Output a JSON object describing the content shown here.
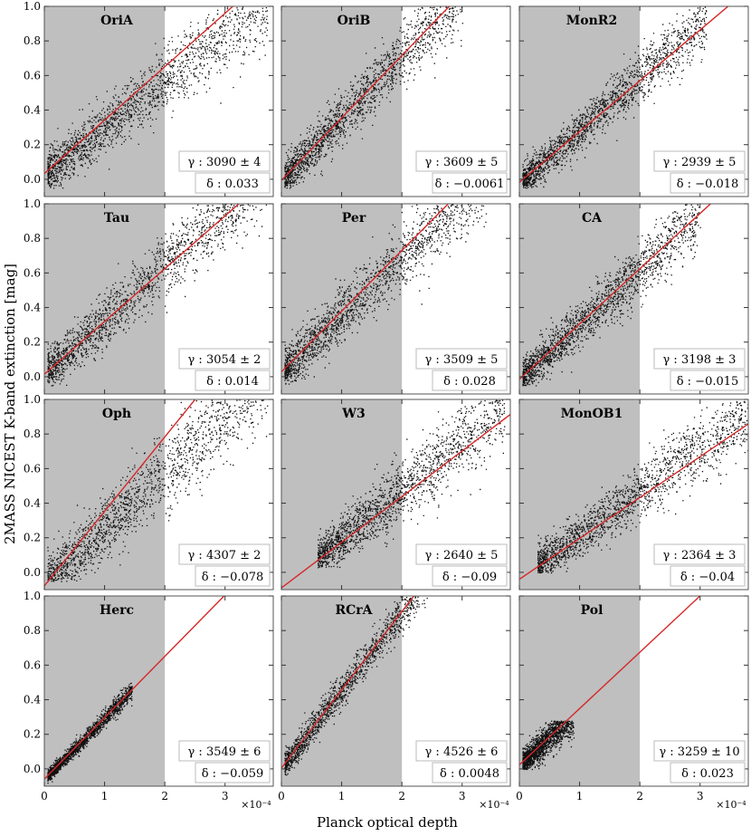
{
  "figure": {
    "ylabel": "2MASS NICEST K-band extinction  [mag]",
    "xlabel": "Planck optical depth",
    "x_multiplier": "×10⁻⁴"
  },
  "chart_data": [
    {
      "type": "scatter",
      "title": "OriA",
      "gamma": "γ : 3090 ± 4",
      "delta": "δ : 0.033",
      "slope": 3090,
      "intercept": 0.033,
      "xlim": [
        0,
        3.8
      ],
      "ylim": [
        -0.1,
        1.0
      ],
      "shade_xmax": 2.0,
      "cloud": {
        "x": [
          0.05,
          3.7
        ],
        "y": [
          -0.05,
          1.0
        ],
        "width": 0.12,
        "skew": -0.04
      }
    },
    {
      "type": "scatter",
      "title": "OriB",
      "gamma": "γ : 3609 ± 5",
      "delta": "δ : −0.0061",
      "slope": 3609,
      "intercept": -0.0061,
      "xlim": [
        0,
        3.8
      ],
      "ylim": [
        -0.1,
        1.0
      ],
      "shade_xmax": 2.0,
      "cloud": {
        "x": [
          0.05,
          3.0
        ],
        "y": [
          -0.05,
          1.0
        ],
        "width": 0.11,
        "skew": 0
      }
    },
    {
      "type": "scatter",
      "title": "MonR2",
      "gamma": "γ : 2939 ± 5",
      "delta": "δ : −0.018",
      "slope": 2939,
      "intercept": -0.018,
      "xlim": [
        0,
        3.8
      ],
      "ylim": [
        -0.1,
        1.0
      ],
      "shade_xmax": 2.0,
      "cloud": {
        "x": [
          0.05,
          3.1
        ],
        "y": [
          -0.05,
          1.0
        ],
        "width": 0.09,
        "skew": 0.01
      }
    },
    {
      "type": "scatter",
      "title": "Tau",
      "gamma": "γ : 3054 ± 2",
      "delta": "δ : 0.014",
      "slope": 3054,
      "intercept": 0.014,
      "xlim": [
        0,
        3.8
      ],
      "ylim": [
        -0.1,
        1.0
      ],
      "shade_xmax": 2.0,
      "cloud": {
        "x": [
          0.05,
          3.7
        ],
        "y": [
          -0.05,
          1.0
        ],
        "width": 0.12,
        "skew": 0.01
      }
    },
    {
      "type": "scatter",
      "title": "Per",
      "gamma": "γ : 3509 ± 5",
      "delta": "δ : 0.028",
      "slope": 3509,
      "intercept": 0.028,
      "xlim": [
        0,
        3.8
      ],
      "ylim": [
        -0.1,
        1.0
      ],
      "shade_xmax": 2.0,
      "cloud": {
        "x": [
          0.05,
          3.4
        ],
        "y": [
          -0.05,
          1.0
        ],
        "width": 0.12,
        "skew": -0.02
      }
    },
    {
      "type": "scatter",
      "title": "CA",
      "gamma": "γ : 3198 ± 3",
      "delta": "δ : −0.015",
      "slope": 3198,
      "intercept": -0.015,
      "xlim": [
        0,
        3.8
      ],
      "ylim": [
        -0.1,
        1.0
      ],
      "shade_xmax": 2.0,
      "cloud": {
        "x": [
          0.05,
          3.0
        ],
        "y": [
          -0.05,
          1.0
        ],
        "width": 0.1,
        "skew": 0
      }
    },
    {
      "type": "scatter",
      "title": "Oph",
      "gamma": "γ : 4307 ± 2",
      "delta": "δ : −0.078",
      "slope": 4307,
      "intercept": -0.078,
      "xlim": [
        0,
        3.8
      ],
      "ylim": [
        -0.1,
        1.0
      ],
      "shade_xmax": 2.0,
      "cloud": {
        "x": [
          0.05,
          3.7
        ],
        "y": [
          -0.05,
          1.0
        ],
        "width": 0.14,
        "skew": -0.1
      }
    },
    {
      "type": "scatter",
      "title": "W3",
      "gamma": "γ : 2640 ± 5",
      "delta": "δ : −0.09",
      "slope": 2640,
      "intercept": -0.09,
      "xlim": [
        0,
        3.8
      ],
      "ylim": [
        -0.1,
        1.0
      ],
      "shade_xmax": 2.0,
      "cloud": {
        "x": [
          0.6,
          3.7
        ],
        "y": [
          0.03,
          1.0
        ],
        "width": 0.12,
        "skew": 0.02
      }
    },
    {
      "type": "scatter",
      "title": "MonOB1",
      "gamma": "γ : 2364 ± 3",
      "delta": "δ : −0.04",
      "slope": 2364,
      "intercept": -0.04,
      "xlim": [
        0,
        3.8
      ],
      "ylim": [
        -0.1,
        1.0
      ],
      "shade_xmax": 2.0,
      "cloud": {
        "x": [
          0.3,
          3.8
        ],
        "y": [
          0.0,
          1.0
        ],
        "width": 0.11,
        "skew": 0.02
      }
    },
    {
      "type": "scatter",
      "title": "Herc",
      "gamma": "γ : 3549 ± 6",
      "delta": "δ : −0.059",
      "slope": 3549,
      "intercept": -0.059,
      "xlim": [
        0,
        3.8
      ],
      "ylim": [
        -0.1,
        1.0
      ],
      "shade_xmax": 2.0,
      "cloud": {
        "x": [
          0.05,
          1.45
        ],
        "y": [
          -0.08,
          0.5
        ],
        "width": 0.03,
        "skew": 0
      }
    },
    {
      "type": "scatter",
      "title": "RCrA",
      "gamma": "γ : 4526 ± 6",
      "delta": "δ : 0.0048",
      "slope": 4526,
      "intercept": 0.0048,
      "xlim": [
        0,
        3.8
      ],
      "ylim": [
        -0.1,
        1.0
      ],
      "shade_xmax": 2.0,
      "cloud": {
        "x": [
          0.05,
          3.1
        ],
        "y": [
          -0.05,
          1.0
        ],
        "width": 0.07,
        "skew": 0
      }
    },
    {
      "type": "scatter",
      "title": "Pol",
      "gamma": "γ : 3259 ± 10",
      "delta": "δ : 0.023",
      "slope": 3259,
      "intercept": 0.023,
      "xlim": [
        0,
        3.8
      ],
      "ylim": [
        -0.1,
        1.0
      ],
      "shade_xmax": 2.0,
      "cloud": {
        "x": [
          0.05,
          0.9
        ],
        "y": [
          0.0,
          0.28
        ],
        "width": 0.06,
        "skew": 0
      }
    }
  ],
  "axes": {
    "xticks": [
      0,
      1,
      2,
      3
    ],
    "xtick_labels": [
      "0",
      "1",
      "2",
      "3"
    ],
    "yticks": [
      0.0,
      0.2,
      0.4,
      0.6,
      0.8,
      1.0
    ],
    "ytick_labels": [
      "0.0",
      "0.2",
      "0.4",
      "0.6",
      "0.8",
      "1.0"
    ]
  },
  "colors": {
    "fit_line": "#d62728",
    "shade": "#bfbfbf",
    "points": "#111111"
  }
}
